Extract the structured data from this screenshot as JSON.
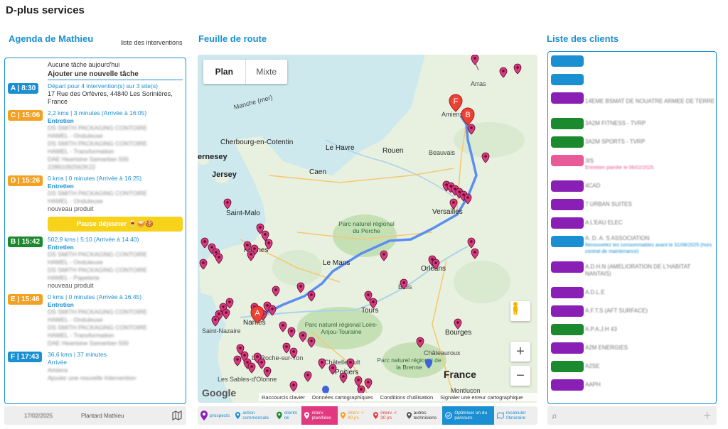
{
  "app_title": "D-plus services",
  "agenda": {
    "title": "Agenda de Mathieu",
    "link": "liste des interventions",
    "none": "Aucune tâche aujourd'hui",
    "add": "Ajouter une nouvelle tâche",
    "items": [
      {
        "badge": "A | 8:30",
        "color": "blue",
        "info": "Départ pour 4 intervention(s) sur 3 site(s)",
        "addr": "17 Rue des Orfèvres, 44840 Les Sorinières, France"
      },
      {
        "badge": "C | 15:06",
        "color": "orange",
        "info": "2,2 kms | 3 minutes (Arrivée à 16:05)",
        "type": "Entretien",
        "lines": [
          "DS SMITH PACKAGING CONTOIRE",
          "HAMEL - Onduleuse",
          "DS SMITH PACKAGING CONTOIRE",
          "HAMEL - Transformation",
          "DAE Heartsine Samaritan 500",
          "22891092562K22"
        ]
      },
      {
        "badge": "D | 15:26",
        "color": "orange",
        "info": "0 kms | 0 minutes (Arrivée à 16:25)",
        "type": "Entretien",
        "lines": [
          "DS SMITH PACKAGING CONTOIRE",
          "HAMEL - Onduleuse"
        ],
        "plain": "nouveau produit"
      },
      {
        "badge": "B | 15:42",
        "color": "green",
        "info": "502,9 kms | 5:10 (Arrivée à 14:40)",
        "type": "Entretien",
        "lines": [
          "DS SMITH PACKAGING CONTOIRE",
          "HAMEL - Onduleuse",
          "DS SMITH PACKAGING CONTOIRE",
          "HAMEL - Papeterie"
        ],
        "plain": "nouveau produit"
      },
      {
        "badge": "E | 15:46",
        "color": "orange",
        "info": "0 kms | 0 minutes (Arrivée à 16:45)",
        "type": "Entretien",
        "lines": [
          "DS SMITH PACKAGING CONTOIRE",
          "HAMEL - Onduleuse",
          "DS SMITH PACKAGING CONTOIRE",
          "HAMEL - Transformation",
          "DAE Heartsine Samaritan 500"
        ]
      },
      {
        "badge": "F | 17:43",
        "color": "blue",
        "info": "36,6 kms | 37 minutes",
        "type": "Arrivée",
        "lines": [
          "Amiens",
          "Ajouter une nouvelle Intervention"
        ]
      }
    ],
    "pause": "Pause déjeuner 🍷🥪🍪",
    "footer_date": "17/02/2025",
    "footer_user": "Plantard Mathieu"
  },
  "route": {
    "title": "Feuille de route",
    "tab_plan": "Plan",
    "tab_mixte": "Mixte",
    "labels": {
      "manche": "Manche (mer)",
      "cherbourg": "Cherbourg-en-Cotentin",
      "jersey": "Jersey",
      "ernesey": "ernesey",
      "caen": "Caen",
      "lehavre": "Le Havre",
      "rouen": "Rouen",
      "beauvais": "Beauvais",
      "amiens": "Amiens",
      "arras": "Arras",
      "saintmalo": "Saint-Malo",
      "rennes": "Rennes",
      "versailles": "Versailles",
      "lemans": "Le Mans",
      "perche": "Parc naturel régional du Perche",
      "orleans": "Orléans",
      "blois": "Blois",
      "tours": "Tours",
      "anjou": "Parc naturel régional Loire-Anjou-Touraine",
      "nantes": "Nantes",
      "saintnazaire": "Saint-Nazaire",
      "bourges": "Bourges",
      "brenne": "Parc naturel régional de la Brenne",
      "chateauroux": "Châteauroux",
      "chatellerault": "Châtellerault",
      "poitiers": "Poitiers",
      "roche": "La Roche-sur-Yon",
      "sables": "Les Sables-d'Olonne",
      "montlucon": "Montluçon",
      "france": "France"
    },
    "google": "Google",
    "footer": [
      "Raccourcis clavier",
      "Données cartographiques",
      "Conditions d'utilisation",
      "Signaler une erreur cartographique"
    ]
  },
  "legend": {
    "items": [
      "prospects",
      "action commerciale",
      "clients ok",
      "interv. planifiées",
      "interv. < 90 jrs",
      "interv. < 30 jrs",
      "autres techniciens",
      "Optimiser on du parcours",
      "recalculer l'itinéraire"
    ]
  },
  "clients": {
    "title": "Liste des clients",
    "rows": [
      {
        "color": "#1a8fd1",
        "name": "",
        "note": ""
      },
      {
        "color": "#1a8fd1",
        "name": "",
        "note": ""
      },
      {
        "color": "#8a1fb5",
        "name": "14EME BSMAT DE NOUATRE ARMEE DE TERRE",
        "note": ""
      },
      {
        "color": "#1b8a2e",
        "name": "3A2M FITNESS - TVRP",
        "note": ""
      },
      {
        "color": "#1b8a2e",
        "name": "3A2M SPORTS - TVRP",
        "note": ""
      },
      {
        "color": "#e85a98",
        "name": "3IS",
        "note": "Entretien planifié le 06/02/2025"
      },
      {
        "color": "#8a1fb5",
        "name": "4CAD",
        "note": ""
      },
      {
        "color": "#8a1fb5",
        "name": "7 URBAN SUITES",
        "note": ""
      },
      {
        "color": "#8a1fb5",
        "name": "A L'EAU ELEC",
        "note": ""
      },
      {
        "color": "#1a8fd1",
        "name": "A. D. A. S ASSOCIATION",
        "note": "Renouvelez les consommables avant le 31/08/2025 (hors contrat de maintenance)"
      },
      {
        "color": "#8a1fb5",
        "name": "A.D.H.N (AMELIORATION DE L'HABITAT NANTAIS)",
        "note": ""
      },
      {
        "color": "#8a1fb5",
        "name": "A.D.L.E",
        "note": ""
      },
      {
        "color": "#8a1fb5",
        "name": "A.F.T.S (AFT SURFACE)",
        "note": ""
      },
      {
        "color": "#1b8a2e",
        "name": "A.P.A.J.H 43",
        "note": ""
      },
      {
        "color": "#8a1fb5",
        "name": "A2M ENERGIES",
        "note": ""
      },
      {
        "color": "#1b8a2e",
        "name": "A2SE",
        "note": ""
      },
      {
        "color": "#8a1fb5",
        "name": "AAPH",
        "note": ""
      }
    ]
  }
}
